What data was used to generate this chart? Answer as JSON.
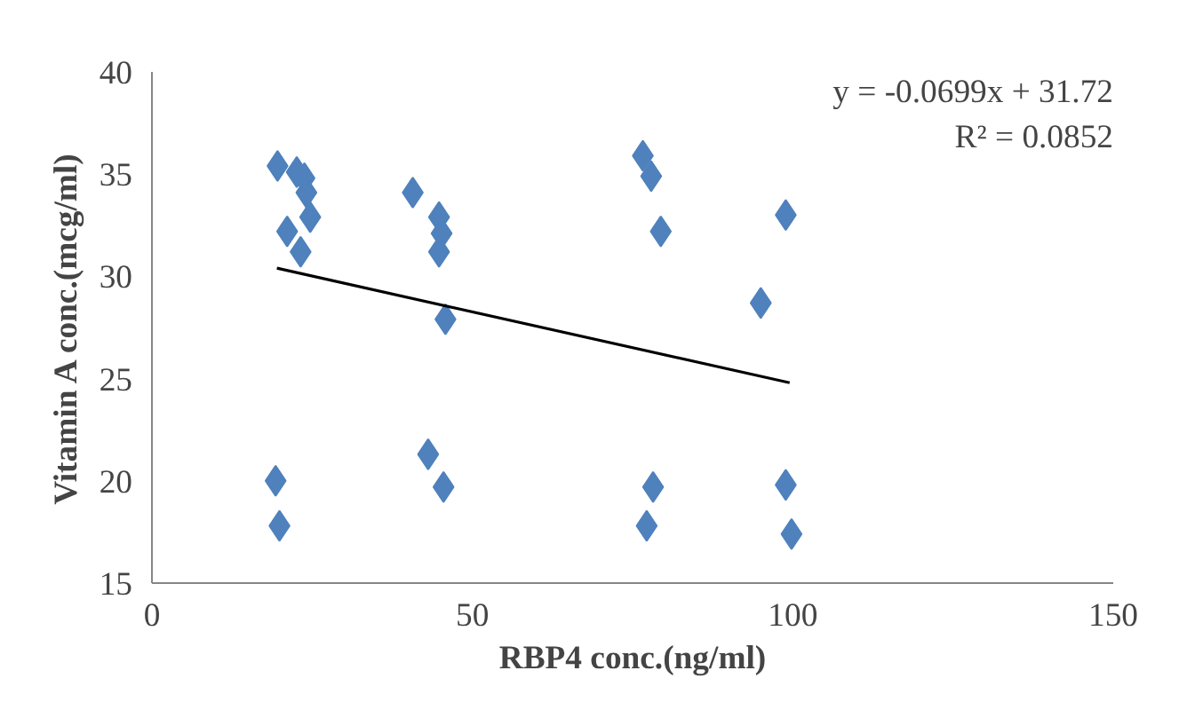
{
  "chart_data": {
    "type": "scatter",
    "xlabel": "RBP4 conc.(ng/ml)",
    "ylabel": "Vitamin A conc.(mcg/ml)",
    "xlim": [
      0,
      150
    ],
    "xticks": [
      0,
      50,
      100,
      150
    ],
    "ylim": [
      15,
      40
    ],
    "yticks": [
      15,
      20,
      25,
      30,
      35,
      40
    ],
    "grid": false,
    "annotations": [
      "y = -0.0699x + 31.72",
      "R² = 0.0852"
    ],
    "series": [
      {
        "marker": "diamond",
        "color": "#4f81bd",
        "x": [
          19.6,
          22.6,
          23.8,
          24.1,
          24.7,
          21.1,
          23.2,
          40.7,
          44.8,
          45.2,
          44.8,
          45.8,
          43.1,
          45.5,
          19.3,
          19.9,
          76.6,
          77.9,
          79.4,
          98.9,
          95.0,
          78.2,
          77.2,
          98.9,
          99.8
        ],
        "values": [
          35.4,
          35.1,
          34.8,
          34.1,
          32.9,
          32.2,
          31.2,
          34.1,
          32.9,
          32.1,
          31.2,
          27.9,
          21.3,
          19.7,
          20.0,
          17.8,
          35.9,
          34.9,
          32.2,
          33.0,
          28.7,
          19.7,
          17.8,
          19.8,
          17.4
        ]
      },
      {
        "type": "line",
        "color": "#000000",
        "marker": "none",
        "line_style": "solid",
        "x": [
          19.5,
          99.5
        ],
        "values": [
          30.4,
          24.8
        ]
      }
    ]
  }
}
